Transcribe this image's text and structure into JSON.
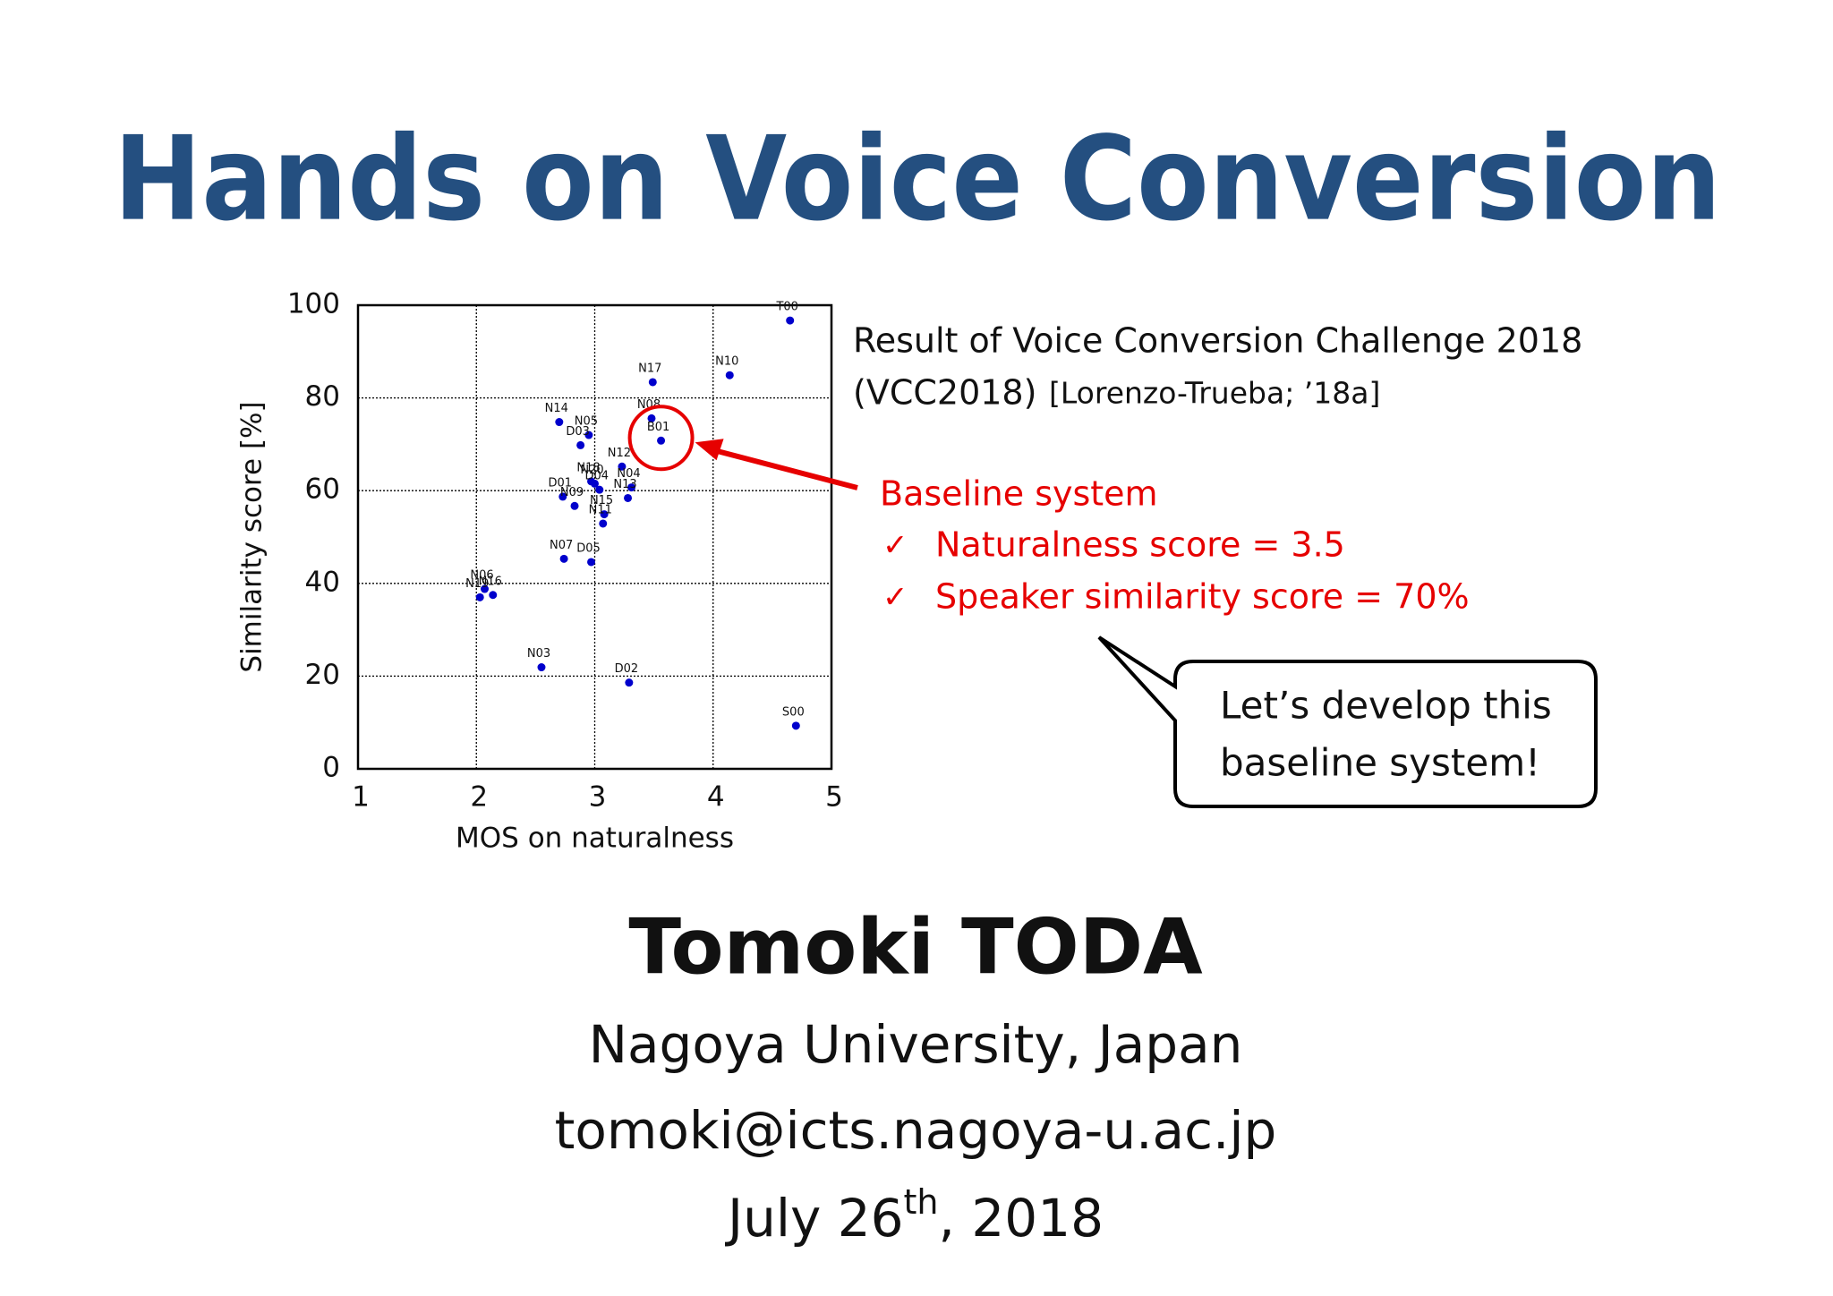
{
  "slide": {
    "title": "Hands on Voice Conversion",
    "caption_line1": "Result of Voice Conversion Challenge 2018",
    "caption_line2": "(VCC2018)",
    "caption_ref": "[Lorenzo-Trueba; ’18a]",
    "baseline_heading": "Baseline system",
    "baseline_points": [
      "Naturalness score = 3.5",
      "Speaker similarity score = 70%"
    ],
    "check_mark": "✓",
    "bubble_lines": [
      "Let’s develop this",
      "baseline system!"
    ],
    "author": "Tomoki TODA",
    "affiliation": "Nagoya University, Japan",
    "email": "tomoki@icts.nagoya-u.ac.jp",
    "date_parts": [
      "July 26",
      "th",
      ", 2018"
    ]
  },
  "chart_data": {
    "type": "scatter",
    "x_label": "MOS on naturalness",
    "y_label": "Similarity score [%]",
    "xlim": [
      1,
      5
    ],
    "xticks": [
      1,
      2,
      3,
      4,
      5
    ],
    "ylim": [
      0,
      100
    ],
    "yticks": [
      0,
      20,
      40,
      60,
      80,
      100
    ],
    "grid": true,
    "color": "#0000cc",
    "point_labels": [
      "T00",
      "N10",
      "N17",
      "N08",
      "B01",
      "N14",
      "N05",
      "D03",
      "N12",
      "N18",
      "N20",
      "D04",
      "N04",
      "N13",
      "D01",
      "N09",
      "N15",
      "N11",
      "N07",
      "D05",
      "N06",
      "N19",
      "N16",
      "N03",
      "D02",
      "S00"
    ],
    "x": [
      4.65,
      4.14,
      3.49,
      3.48,
      3.56,
      2.7,
      2.95,
      2.88,
      3.23,
      2.97,
      3.0,
      3.04,
      3.31,
      3.28,
      2.73,
      2.83,
      3.08,
      3.07,
      2.74,
      2.97,
      2.07,
      2.03,
      2.14,
      2.55,
      3.29,
      4.7
    ],
    "values": [
      96.7,
      84.9,
      83.4,
      75.6,
      70.8,
      74.8,
      72.0,
      69.8,
      65.2,
      62.0,
      61.5,
      60.2,
      60.7,
      58.4,
      58.7,
      56.7,
      54.9,
      52.9,
      45.3,
      44.6,
      38.8,
      37.0,
      37.5,
      21.9,
      18.6,
      9.3
    ]
  }
}
